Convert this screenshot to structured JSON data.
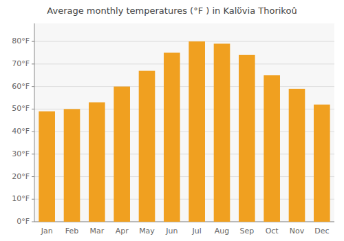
{
  "chart_data": {
    "type": "bar",
    "title": "Average monthly temperatures (°F ) in Kalὕvia Thorikoû",
    "categories": [
      "Jan",
      "Feb",
      "Mar",
      "Apr",
      "May",
      "Jun",
      "Jul",
      "Aug",
      "Sep",
      "Oct",
      "Nov",
      "Dec"
    ],
    "values": [
      49,
      50,
      53,
      60,
      67,
      75,
      80,
      79,
      74,
      65,
      59,
      52
    ],
    "color": "#F0A020",
    "ylim": [
      0,
      88
    ],
    "yticks": [
      {
        "value": 0,
        "label": "0°F"
      },
      {
        "value": 10,
        "label": "10°F"
      },
      {
        "value": 20,
        "label": "20°F"
      },
      {
        "value": 30,
        "label": "30°F"
      },
      {
        "value": 40,
        "label": "40°F"
      },
      {
        "value": 50,
        "label": "50°F"
      },
      {
        "value": 60,
        "label": "60°F"
      },
      {
        "value": 70,
        "label": "70°F"
      },
      {
        "value": 80,
        "label": "80°F"
      }
    ],
    "grid": true
  }
}
